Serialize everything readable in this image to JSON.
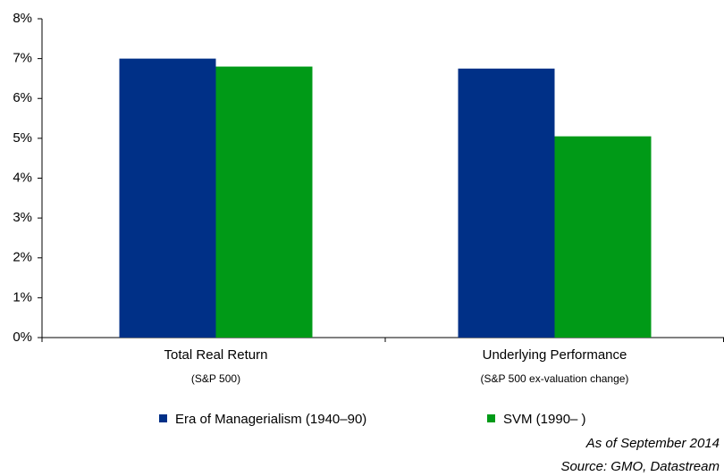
{
  "chart_data": {
    "type": "bar",
    "categories": [
      "Total Real Return",
      "Underlying Performance"
    ],
    "category_notes": [
      "(S&P 500)",
      "(S&P 500 ex-valuation change)"
    ],
    "series": [
      {
        "name": "Era of Managerialism (1940–90)",
        "color": "#003087",
        "values": [
          7.0,
          6.75
        ]
      },
      {
        "name": "SVM (1990– )",
        "color": "#009a17",
        "values": [
          6.8,
          5.05
        ]
      }
    ],
    "ylim": [
      0,
      8
    ],
    "yticks": [
      {
        "value": 0,
        "label": "0%"
      },
      {
        "value": 1,
        "label": "1%"
      },
      {
        "value": 2,
        "label": "2%"
      },
      {
        "value": 3,
        "label": "3%"
      },
      {
        "value": 4,
        "label": "4%"
      },
      {
        "value": 5,
        "label": "5%"
      },
      {
        "value": 6,
        "label": "6%"
      },
      {
        "value": 7,
        "label": "7%"
      },
      {
        "value": 8,
        "label": "8%"
      }
    ],
    "grid": false,
    "legend": "bottom",
    "notes": [
      "As of September 2014",
      "Source: GMO, Datastream"
    ]
  }
}
